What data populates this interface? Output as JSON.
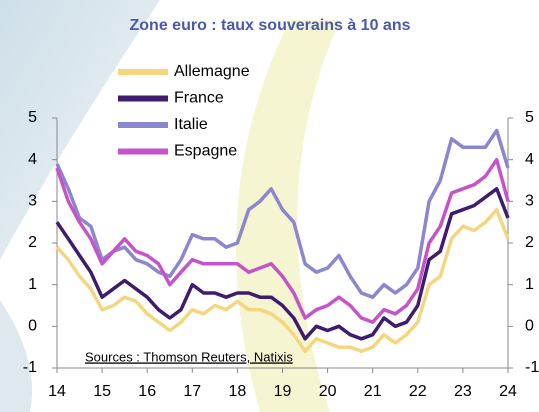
{
  "chart_data": {
    "type": "line",
    "title": "Zone euro : taux souverains à 10 ans",
    "annotation": "Sources : Thomson Reuters, Natixis",
    "x": [
      14,
      14.25,
      14.5,
      14.75,
      15,
      15.25,
      15.5,
      15.75,
      16,
      16.25,
      16.5,
      16.75,
      17,
      17.25,
      17.5,
      17.75,
      18,
      18.25,
      18.5,
      18.75,
      19,
      19.25,
      19.5,
      19.75,
      20,
      20.25,
      20.5,
      20.75,
      21,
      21.25,
      21.5,
      21.75,
      22,
      22.25,
      22.5,
      22.75,
      23,
      23.25,
      23.5,
      23.75,
      24
    ],
    "series": [
      {
        "name": "Allemagne",
        "color": "#f5d67e",
        "values": [
          1.9,
          1.6,
          1.2,
          0.9,
          0.4,
          0.5,
          0.7,
          0.6,
          0.3,
          0.1,
          -0.1,
          0.1,
          0.4,
          0.3,
          0.5,
          0.4,
          0.6,
          0.4,
          0.4,
          0.3,
          0.1,
          -0.2,
          -0.6,
          -0.3,
          -0.4,
          -0.5,
          -0.5,
          -0.6,
          -0.5,
          -0.2,
          -0.4,
          -0.2,
          0.1,
          1.0,
          1.2,
          2.1,
          2.4,
          2.3,
          2.5,
          2.8,
          2.1
        ]
      },
      {
        "name": "France",
        "color": "#3e1c6e",
        "values": [
          2.5,
          2.1,
          1.7,
          1.3,
          0.7,
          0.9,
          1.1,
          0.9,
          0.7,
          0.4,
          0.2,
          0.4,
          1.0,
          0.8,
          0.8,
          0.7,
          0.8,
          0.8,
          0.7,
          0.7,
          0.5,
          0.2,
          -0.3,
          0.0,
          -0.1,
          0.0,
          -0.2,
          -0.3,
          -0.2,
          0.2,
          0.0,
          0.1,
          0.5,
          1.6,
          1.8,
          2.7,
          2.8,
          2.9,
          3.1,
          3.3,
          2.6
        ]
      },
      {
        "name": "Italie",
        "color": "#8a87d0",
        "values": [
          3.9,
          3.3,
          2.6,
          2.4,
          1.6,
          1.8,
          1.9,
          1.6,
          1.5,
          1.3,
          1.2,
          1.6,
          2.2,
          2.1,
          2.1,
          1.9,
          2.0,
          2.8,
          3.0,
          3.3,
          2.8,
          2.5,
          1.5,
          1.3,
          1.4,
          1.7,
          1.2,
          0.8,
          0.7,
          1.0,
          0.8,
          1.0,
          1.4,
          3.0,
          3.5,
          4.5,
          4.3,
          4.3,
          4.3,
          4.7,
          3.8
        ]
      },
      {
        "name": "Espagne",
        "color": "#c654c8",
        "values": [
          3.8,
          3.0,
          2.5,
          2.1,
          1.5,
          1.8,
          2.1,
          1.8,
          1.7,
          1.5,
          1.0,
          1.3,
          1.6,
          1.5,
          1.5,
          1.5,
          1.5,
          1.3,
          1.4,
          1.5,
          1.2,
          0.8,
          0.2,
          0.4,
          0.5,
          0.7,
          0.5,
          0.2,
          0.1,
          0.4,
          0.3,
          0.5,
          0.9,
          2.0,
          2.4,
          3.2,
          3.3,
          3.4,
          3.6,
          4.0,
          3.0
        ]
      }
    ],
    "xlim": [
      14,
      24
    ],
    "xticks": [
      14,
      15,
      16,
      17,
      18,
      19,
      20,
      21,
      22,
      23,
      24
    ],
    "ylim": [
      -1,
      5
    ],
    "yticks": [
      -1,
      0,
      1,
      2,
      3,
      4,
      5
    ],
    "y2lim": [
      -1,
      5
    ],
    "y2ticks": [
      -1,
      0,
      1,
      2,
      3,
      4,
      5
    ],
    "legend": "upper left"
  }
}
